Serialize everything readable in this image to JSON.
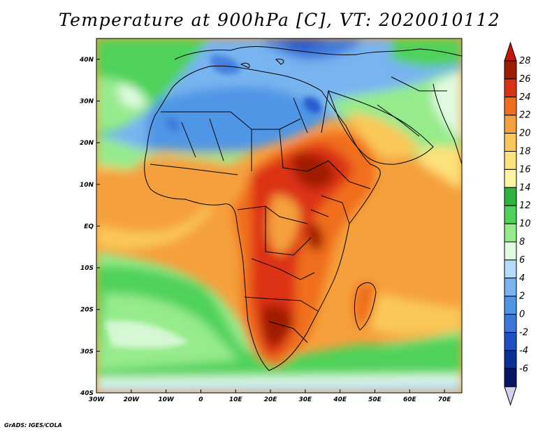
{
  "title": "Temperature at 900hPa [C], VT: 2020010112",
  "credit": "GrADS: IGES/COLA",
  "map": {
    "region": "Africa",
    "field": "temperature",
    "level": "900hPa",
    "units": "C",
    "lon_range": [
      -30,
      75
    ],
    "lat_range": [
      -40,
      45
    ]
  },
  "axes": {
    "lon_ticks": [
      {
        "value": -30,
        "label": "30W"
      },
      {
        "value": -20,
        "label": "20W"
      },
      {
        "value": -10,
        "label": "10W"
      },
      {
        "value": 0,
        "label": "0"
      },
      {
        "value": 10,
        "label": "10E"
      },
      {
        "value": 20,
        "label": "20E"
      },
      {
        "value": 30,
        "label": "30E"
      },
      {
        "value": 40,
        "label": "40E"
      },
      {
        "value": 50,
        "label": "50E"
      },
      {
        "value": 60,
        "label": "60E"
      },
      {
        "value": 70,
        "label": "70E"
      }
    ],
    "lat_ticks": [
      {
        "value": 40,
        "label": "40N"
      },
      {
        "value": 30,
        "label": "30N"
      },
      {
        "value": 20,
        "label": "20N"
      },
      {
        "value": 10,
        "label": "10N"
      },
      {
        "value": 0,
        "label": "EQ"
      },
      {
        "value": -10,
        "label": "10S"
      },
      {
        "value": -20,
        "label": "20S"
      },
      {
        "value": -30,
        "label": "30S"
      },
      {
        "value": -40,
        "label": "40S"
      }
    ]
  },
  "colorbar": {
    "levels": [
      {
        "label": "28",
        "color": "#a01e00"
      },
      {
        "label": "26",
        "color": "#dc3214"
      },
      {
        "label": "24",
        "color": "#f06e1e"
      },
      {
        "label": "22",
        "color": "#f5a03c"
      },
      {
        "label": "20",
        "color": "#fac858"
      },
      {
        "label": "18",
        "color": "#fde17a"
      },
      {
        "label": "16",
        "color": "#fff5a0"
      },
      {
        "label": "14",
        "color": "#2eb43c"
      },
      {
        "label": "12",
        "color": "#50d25a"
      },
      {
        "label": "10",
        "color": "#96eb8c"
      },
      {
        "label": "8",
        "color": "#e1fae1"
      },
      {
        "label": "6",
        "color": "#b4dcfa"
      },
      {
        "label": "4",
        "color": "#78b4f0"
      },
      {
        "label": "2",
        "color": "#5096e6"
      },
      {
        "label": "0",
        "color": "#3c78dc"
      },
      {
        "label": "-2",
        "color": "#1e50c8"
      },
      {
        "label": "-4",
        "color": "#0a3296"
      },
      {
        "label": "-6",
        "color": "#0a1464"
      }
    ],
    "top_cap_color": "#c8140a",
    "bottom_cap_color": "#d2d2f0"
  }
}
